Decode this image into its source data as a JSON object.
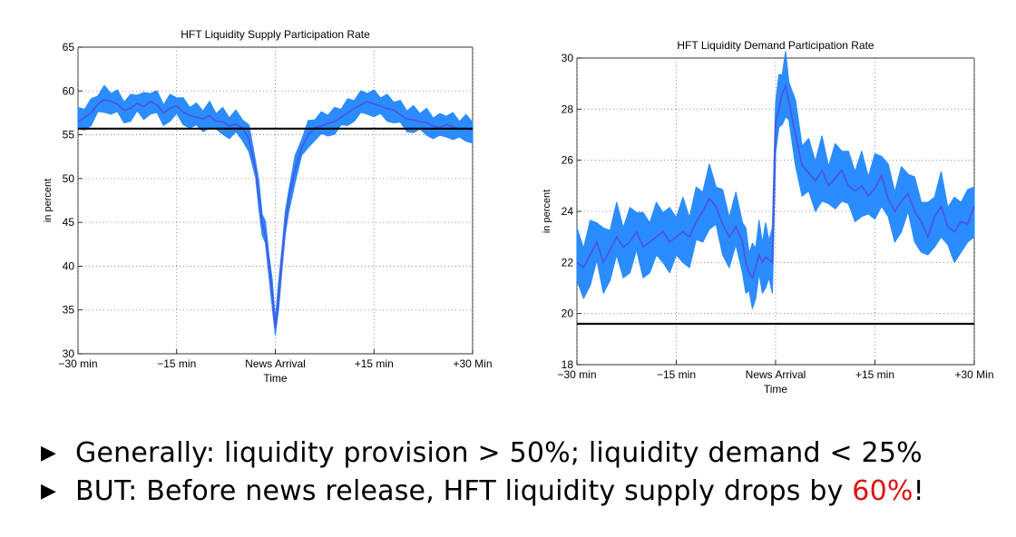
{
  "chart_data": [
    {
      "type": "area",
      "title": "HFT Liquidity Supply Participation Rate",
      "xlabel": "Time",
      "ylabel": "in percent",
      "x_ticks": [
        "−30 min",
        "−15 min",
        "News Arrival",
        "+15 min",
        "+30 Min"
      ],
      "y_ticks": [
        30,
        35,
        40,
        45,
        50,
        55,
        60,
        65
      ],
      "xlim": [
        -30,
        30
      ],
      "ylim": [
        30,
        65
      ],
      "grid": true,
      "reference_line": 55.7,
      "series": [
        {
          "x": [
            -30,
            -29,
            -28,
            -27,
            -26,
            -25,
            -24,
            -23,
            -22,
            -21,
            -20,
            -19,
            -18,
            -17,
            -16,
            -15,
            -14,
            -13,
            -12,
            -11,
            -10,
            -9,
            -8,
            -7,
            -6,
            -5,
            -4,
            -3,
            -2.5,
            -2,
            -1.5,
            -1,
            -0.5,
            0,
            0.5,
            1,
            1.5,
            2,
            3,
            4,
            5,
            6,
            7,
            8,
            9,
            10,
            11,
            12,
            13,
            14,
            15,
            16,
            17,
            18,
            19,
            20,
            21,
            22,
            23,
            24,
            25,
            26,
            27,
            28,
            29,
            30
          ],
          "values": [
            56.5,
            57.0,
            57.5,
            58.5,
            59.0,
            58.8,
            58.5,
            57.8,
            58.0,
            58.6,
            58.2,
            58.8,
            58.4,
            57.5,
            58.0,
            58.3,
            57.6,
            57.2,
            57.0,
            56.8,
            57.2,
            56.5,
            56.5,
            56.0,
            56.2,
            55.8,
            54.5,
            51.0,
            48.0,
            45.0,
            43.5,
            40.5,
            37.0,
            33.0,
            36.5,
            41.0,
            44.5,
            47.5,
            51.0,
            53.5,
            55.0,
            55.8,
            56.0,
            56.3,
            56.5,
            57.0,
            57.5,
            58.0,
            58.4,
            58.8,
            58.5,
            58.3,
            58.0,
            57.8,
            57.3,
            56.8,
            56.7,
            56.5,
            56.4,
            56.0,
            55.8,
            56.2,
            55.9,
            55.6,
            55.7,
            55.5
          ],
          "band": 1.2
        }
      ]
    },
    {
      "type": "area",
      "title": "HFT Liquidity Demand Participation Rate",
      "xlabel": "Time",
      "ylabel": "in percent",
      "x_ticks": [
        "−30 min",
        "−15 min",
        "News Arrival",
        "+15 min",
        "+30 Min"
      ],
      "y_ticks": [
        18,
        20,
        22,
        24,
        26,
        28,
        30
      ],
      "xlim": [
        -30,
        30
      ],
      "ylim": [
        18,
        30
      ],
      "grid": true,
      "reference_line": 19.6,
      "series": [
        {
          "x": [
            -30,
            -29,
            -28,
            -27,
            -26,
            -25,
            -24,
            -23,
            -22,
            -21,
            -20,
            -19,
            -18,
            -17,
            -16,
            -15,
            -14,
            -13,
            -12,
            -11,
            -10,
            -9,
            -8,
            -7,
            -6,
            -5,
            -4.5,
            -4,
            -3.5,
            -3,
            -2.5,
            -2,
            -1.5,
            -1,
            -0.5,
            0,
            0.5,
            1,
            1.5,
            2,
            3,
            4,
            5,
            6,
            7,
            8,
            9,
            10,
            11,
            12,
            13,
            14,
            15,
            16,
            17,
            18,
            19,
            20,
            21,
            22,
            23,
            24,
            25,
            26,
            27,
            28,
            29,
            30
          ],
          "values": [
            22.0,
            21.8,
            22.3,
            22.8,
            22.0,
            22.5,
            23.0,
            22.6,
            22.8,
            23.2,
            22.6,
            22.8,
            23.0,
            23.2,
            22.8,
            23.0,
            23.2,
            23.0,
            23.6,
            24.0,
            24.5,
            24.2,
            23.5,
            23.0,
            23.4,
            22.8,
            22.0,
            21.6,
            21.4,
            21.8,
            22.3,
            22.0,
            22.2,
            22.1,
            22.0,
            27.5,
            28.0,
            28.6,
            28.9,
            28.3,
            27.0,
            25.8,
            25.5,
            25.2,
            25.6,
            25.0,
            25.3,
            25.6,
            25.0,
            24.8,
            25.0,
            24.6,
            24.9,
            25.4,
            24.5,
            24.0,
            24.4,
            24.7,
            24.0,
            23.6,
            23.0,
            23.8,
            24.2,
            23.4,
            23.2,
            23.6,
            23.5,
            24.2
          ],
          "band": 1.0
        }
      ]
    }
  ],
  "bullets": {
    "item1": "Generally: liquidity provision > 50%; liquidity demand < 25%",
    "item2_before": "BUT: Before news release, HFT liquidity supply drops by ",
    "item2_highlight": "60%",
    "item2_after": "!",
    "marker": "▶"
  },
  "colors": {
    "band": "#2b8cff",
    "mean_line": "#4a57e0",
    "reference_line": "#000000",
    "highlight": "#e01010"
  }
}
